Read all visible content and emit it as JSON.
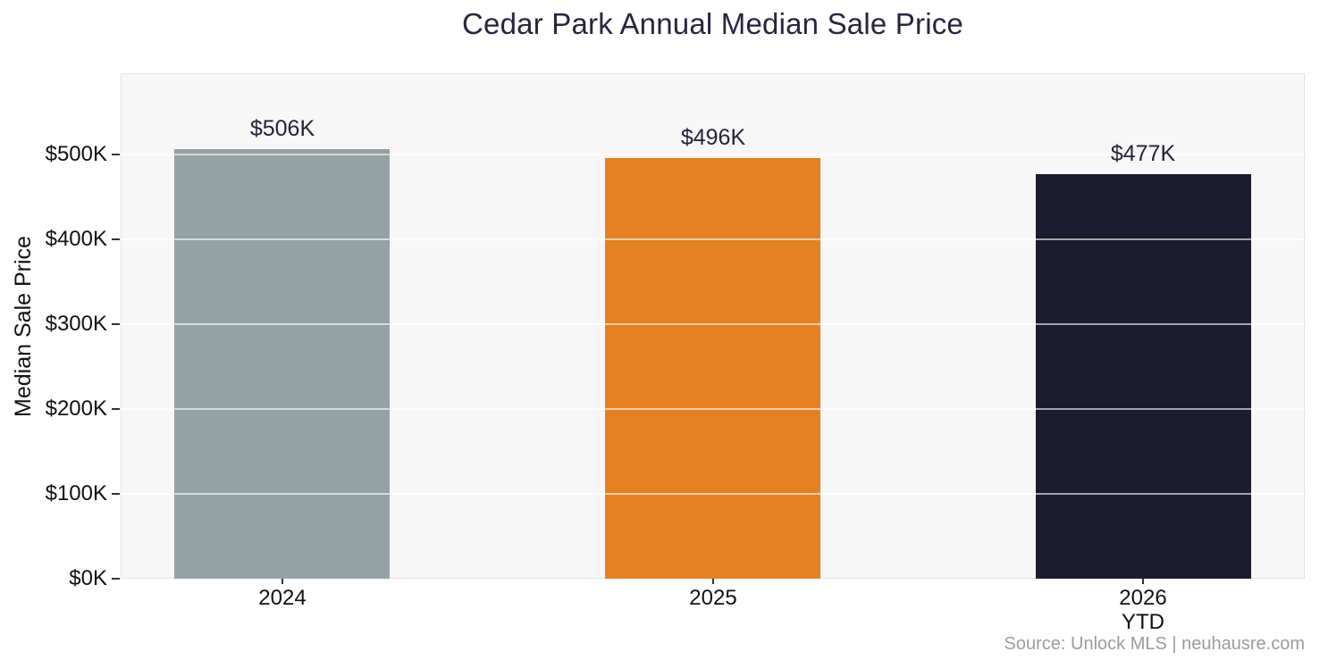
{
  "title": "Cedar Park Annual Median Sale Price",
  "source": "Source: Unlock MLS | neuhausre.com",
  "chart_data": {
    "type": "bar",
    "title": "Cedar Park Annual Median Sale Price",
    "categories": [
      "2024",
      "2025",
      "2026 YTD"
    ],
    "category_lines": [
      [
        "2024"
      ],
      [
        "2025"
      ],
      [
        "2026",
        "YTD"
      ]
    ],
    "values": [
      506000,
      496000,
      477000
    ],
    "value_labels": [
      "$506K",
      "$496K",
      "$477K"
    ],
    "bar_colors": [
      "#94a2a3",
      "#e48122",
      "#1d1b2e"
    ],
    "xlabel": "",
    "ylabel": "Median Sale Price",
    "yticks": [
      0,
      100000,
      200000,
      300000,
      400000,
      500000
    ],
    "ytick_labels": [
      "$0K",
      "$100K",
      "$200K",
      "$300K",
      "$400K",
      "$500K"
    ],
    "ylim": [
      0,
      596000
    ],
    "grid": "horizontal",
    "gridline_color": "rgba(255,255,255,0.6)",
    "plot_background": "#f7f7f7",
    "legend": "none",
    "source": "Source: Unlock MLS | neuhausre.com"
  },
  "colors": {
    "title_text": "#262640",
    "axis_text": "#111111",
    "value_label_text": "#23233d",
    "source_text": "#9b9b9b",
    "plot_border": "#e2e2e2",
    "tick_mark": "#333333",
    "page_background": "#ffffff"
  }
}
